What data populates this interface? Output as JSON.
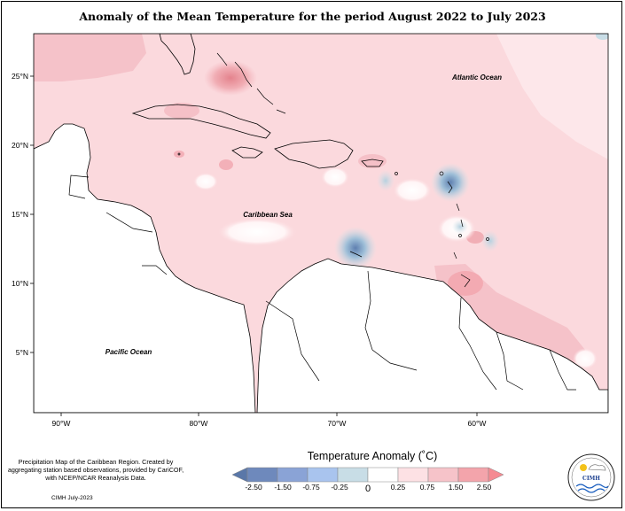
{
  "title": "Anomaly of the Mean Temperature for the period August 2022 to July 2023",
  "axes": {
    "lat_ticks": [
      "25°N",
      "20°N",
      "15°N",
      "10°N",
      "5°N"
    ],
    "lon_ticks": [
      "90°W",
      "80°W",
      "70°W",
      "60°W"
    ]
  },
  "ocean_labels": [
    "Atlantic Ocean",
    "Caribbean Sea",
    "Pacific Ocean"
  ],
  "legend": {
    "title": "Temperature Anomaly (˚C)",
    "ticks": [
      "-2.50",
      "-1.50",
      "-0.75",
      "-0.25",
      "0",
      "0.25",
      "0.75",
      "1.50",
      "2.50"
    ],
    "colors": [
      "#5a77a8",
      "#8aa3d6",
      "#a9c4ee",
      "#c8dde6",
      "#ffffff",
      "#fde1e4",
      "#f6c3c9",
      "#f3a4ab",
      "#f58b92"
    ]
  },
  "footnote": "Precipitation Map of the Caribbean Region. Created by aggregating station based observations, provided by CariCOF, with NCEP/NCAR Reanalysis Data.",
  "credit": "CIMH July-2023",
  "logo": {
    "text": "CIMH"
  },
  "colors": {
    "anomaly_base": "#fbd9dd",
    "anomaly_warm": "#f5bcc4",
    "anomaly_hot": "#ee9aa3",
    "anomaly_cool": "#c9dde6",
    "anomaly_cold": "#7c9ac0",
    "land_outline": "#000000"
  }
}
